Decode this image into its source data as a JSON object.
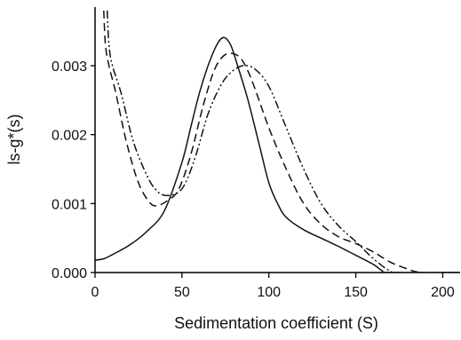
{
  "chart_data": {
    "type": "line",
    "title": "",
    "xlabel": "Sedimentation coefficient (S)",
    "ylabel": "ls-g*(s)",
    "xlim": [
      0,
      210
    ],
    "ylim": [
      0,
      0.00385
    ],
    "x_ticks": [
      0,
      50,
      100,
      150,
      200
    ],
    "x_tick_labels": [
      "0",
      "50",
      "100",
      "150",
      "200"
    ],
    "y_ticks": [
      0,
      0.001,
      0.002,
      0.003
    ],
    "y_tick_labels": [
      "0.000",
      "0.001",
      "0.002",
      "0.003"
    ],
    "grid": false,
    "legend": "none",
    "series": [
      {
        "style": "solid",
        "points": [
          [
            0,
            0.00018
          ],
          [
            5,
            0.0002
          ],
          [
            10,
            0.00026
          ],
          [
            20,
            0.0004
          ],
          [
            30,
            0.0006
          ],
          [
            40,
            0.0009
          ],
          [
            50,
            0.0016
          ],
          [
            55,
            0.0021
          ],
          [
            60,
            0.0026
          ],
          [
            65,
            0.003
          ],
          [
            70,
            0.0033
          ],
          [
            74,
            0.00341
          ],
          [
            78,
            0.0033
          ],
          [
            82,
            0.003
          ],
          [
            88,
            0.0025
          ],
          [
            95,
            0.0018
          ],
          [
            100,
            0.0013
          ],
          [
            105,
            0.001
          ],
          [
            110,
            0.0008
          ],
          [
            120,
            0.00062
          ],
          [
            130,
            0.0005
          ],
          [
            140,
            0.00038
          ],
          [
            150,
            0.00025
          ],
          [
            160,
            0.00012
          ],
          [
            165,
            3e-05
          ],
          [
            170,
            0
          ],
          [
            210,
            0
          ]
        ]
      },
      {
        "style": "dashed",
        "points": [
          [
            5,
            0.0038
          ],
          [
            6,
            0.0033
          ],
          [
            8,
            0.003
          ],
          [
            12,
            0.0026
          ],
          [
            18,
            0.0019
          ],
          [
            25,
            0.0013
          ],
          [
            32,
            0.001
          ],
          [
            37,
            0.00098
          ],
          [
            42,
            0.00105
          ],
          [
            48,
            0.0012
          ],
          [
            55,
            0.0017
          ],
          [
            62,
            0.0024
          ],
          [
            68,
            0.0029
          ],
          [
            73,
            0.00312
          ],
          [
            78,
            0.00318
          ],
          [
            84,
            0.0031
          ],
          [
            90,
            0.0028
          ],
          [
            100,
            0.0021
          ],
          [
            110,
            0.0015
          ],
          [
            120,
            0.001
          ],
          [
            130,
            0.0007
          ],
          [
            140,
            0.00052
          ],
          [
            150,
            0.00042
          ],
          [
            160,
            0.0003
          ],
          [
            170,
            0.00015
          ],
          [
            180,
            5e-05
          ],
          [
            188,
            0
          ],
          [
            210,
            0
          ]
        ]
      },
      {
        "style": "dash-dot-dot",
        "points": [
          [
            7,
            0.0038
          ],
          [
            8,
            0.0033
          ],
          [
            10,
            0.003
          ],
          [
            15,
            0.0026
          ],
          [
            22,
            0.0019
          ],
          [
            30,
            0.0014
          ],
          [
            35,
            0.0012
          ],
          [
            40,
            0.00112
          ],
          [
            47,
            0.00115
          ],
          [
            52,
            0.0013
          ],
          [
            58,
            0.0017
          ],
          [
            65,
            0.0023
          ],
          [
            72,
            0.0027
          ],
          [
            78,
            0.0029
          ],
          [
            85,
            0.003
          ],
          [
            92,
            0.00295
          ],
          [
            100,
            0.0027
          ],
          [
            110,
            0.0021
          ],
          [
            120,
            0.0015
          ],
          [
            130,
            0.001
          ],
          [
            140,
            0.00068
          ],
          [
            150,
            0.00045
          ],
          [
            158,
            0.00025
          ],
          [
            165,
            0.0001
          ],
          [
            170,
            2e-05
          ],
          [
            175,
            0
          ],
          [
            210,
            0
          ]
        ]
      }
    ]
  }
}
